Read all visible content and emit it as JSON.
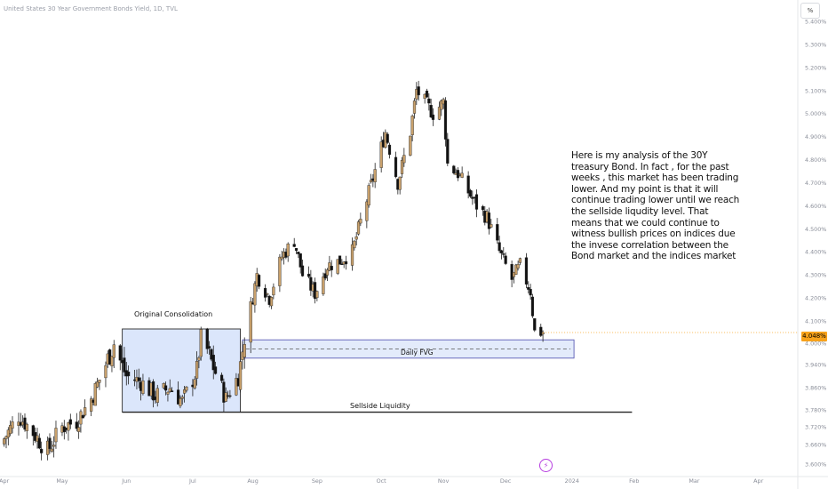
{
  "header": {
    "symbol_title": "United States 30 Year Government Bonds Yield, 1D, TVL",
    "unit_badge": "%"
  },
  "annotations": {
    "analysis_note": "Here is my analysis of the 30Y treasury Bond. In fact ,  for the past weeks  ,  this market has been trading lower. And my point is that  it will continue trading lower until we reach the sellside liqudity level. That means that we could continue to witness bullish prices on indices  due the invese correlation between the Bond market and the indices market",
    "original_consolidation": "Original Consolidation",
    "daily_fvg": "Daily FVG",
    "sellside_liquidity": "Sellside Liquidity"
  },
  "price_tag": "4.048%",
  "colors": {
    "bull": "#c8a06b",
    "bear": "#111111",
    "consolidation_fill": "#dbe6fb",
    "consolidation_stroke": "#2b2b2b",
    "fvg_fill": "#e3ebfb",
    "fvg_stroke": "#5b5bb5",
    "price_tag": "#f7a21b",
    "axis_text": "#8a8e99",
    "bolt_icon": "#b63de0"
  },
  "icons": {
    "event_marker": "lightning-bolt-icon"
  },
  "chart_data": {
    "type": "candlestick",
    "title": "United States 30 Year Government Bonds Yield, 1D, TVL",
    "y_unit": "%",
    "ylim": [
      3.57,
      5.43
    ],
    "xlim": [
      "2023-04-01",
      "2024-04-20"
    ],
    "grid": false,
    "y_ticks": [
      "5.400%",
      "5.300%",
      "5.200%",
      "5.100%",
      "5.000%",
      "4.900%",
      "4.800%",
      "4.700%",
      "4.600%",
      "4.500%",
      "4.400%",
      "4.300%",
      "4.200%",
      "4.100%",
      "4.000%",
      "3.940%",
      "3.860%",
      "3.780%",
      "3.720%",
      "3.660%",
      "3.600%"
    ],
    "x_ticks": [
      {
        "label": "Apr",
        "date": "2023-04-03"
      },
      {
        "label": "May",
        "date": "2023-05-01"
      },
      {
        "label": "Jun",
        "date": "2023-06-01"
      },
      {
        "label": "Jul",
        "date": "2023-07-03"
      },
      {
        "label": "Aug",
        "date": "2023-08-01"
      },
      {
        "label": "Sep",
        "date": "2023-09-01"
      },
      {
        "label": "Oct",
        "date": "2023-10-02"
      },
      {
        "label": "Nov",
        "date": "2023-11-01"
      },
      {
        "label": "Dec",
        "date": "2023-12-01"
      },
      {
        "label": "2024",
        "date": "2024-01-02"
      },
      {
        "label": "Feb",
        "date": "2024-02-01"
      },
      {
        "label": "Mar",
        "date": "2024-03-01"
      },
      {
        "label": "Apr",
        "date": "2024-04-01"
      }
    ],
    "last_price": 4.048,
    "close_path": [
      {
        "date": "2023-04-03",
        "close": 3.68
      },
      {
        "date": "2023-04-10",
        "close": 3.76
      },
      {
        "date": "2023-04-17",
        "close": 3.7
      },
      {
        "date": "2023-04-24",
        "close": 3.64
      },
      {
        "date": "2023-05-01",
        "close": 3.72
      },
      {
        "date": "2023-05-08",
        "close": 3.74
      },
      {
        "date": "2023-05-15",
        "close": 3.82
      },
      {
        "date": "2023-05-22",
        "close": 3.94
      },
      {
        "date": "2023-05-26",
        "close": 4.0
      },
      {
        "date": "2023-06-01",
        "close": 3.9
      },
      {
        "date": "2023-06-08",
        "close": 3.88
      },
      {
        "date": "2023-06-15",
        "close": 3.83
      },
      {
        "date": "2023-06-22",
        "close": 3.86
      },
      {
        "date": "2023-06-28",
        "close": 3.81
      },
      {
        "date": "2023-07-05",
        "close": 3.92
      },
      {
        "date": "2023-07-07",
        "close": 4.03
      },
      {
        "date": "2023-07-13",
        "close": 3.93
      },
      {
        "date": "2023-07-19",
        "close": 3.82
      },
      {
        "date": "2023-07-25",
        "close": 3.9
      },
      {
        "date": "2023-07-28",
        "close": 4.02
      },
      {
        "date": "2023-08-03",
        "close": 4.3
      },
      {
        "date": "2023-08-09",
        "close": 4.2
      },
      {
        "date": "2023-08-15",
        "close": 4.38
      },
      {
        "date": "2023-08-21",
        "close": 4.45
      },
      {
        "date": "2023-08-25",
        "close": 4.3
      },
      {
        "date": "2023-08-31",
        "close": 4.22
      },
      {
        "date": "2023-09-06",
        "close": 4.34
      },
      {
        "date": "2023-09-12",
        "close": 4.36
      },
      {
        "date": "2023-09-18",
        "close": 4.4
      },
      {
        "date": "2023-09-22",
        "close": 4.53
      },
      {
        "date": "2023-09-28",
        "close": 4.72
      },
      {
        "date": "2023-10-04",
        "close": 4.92
      },
      {
        "date": "2023-10-10",
        "close": 4.7
      },
      {
        "date": "2023-10-16",
        "close": 4.92
      },
      {
        "date": "2023-10-19",
        "close": 5.1
      },
      {
        "date": "2023-10-23",
        "close": 5.05
      },
      {
        "date": "2023-10-27",
        "close": 5.0
      },
      {
        "date": "2023-11-01",
        "close": 5.05
      },
      {
        "date": "2023-11-03",
        "close": 4.78
      },
      {
        "date": "2023-11-08",
        "close": 4.74
      },
      {
        "date": "2023-11-13",
        "close": 4.66
      },
      {
        "date": "2023-11-17",
        "close": 4.6
      },
      {
        "date": "2023-11-22",
        "close": 4.55
      },
      {
        "date": "2023-11-28",
        "close": 4.4
      },
      {
        "date": "2023-12-04",
        "close": 4.28
      },
      {
        "date": "2023-12-08",
        "close": 4.34
      },
      {
        "date": "2023-12-13",
        "close": 4.23
      },
      {
        "date": "2023-12-15",
        "close": 4.05
      },
      {
        "date": "2023-12-19",
        "close": 4.05
      }
    ],
    "zones": [
      {
        "label": "Original Consolidation",
        "from": "2023-05-30",
        "to": "2023-07-26",
        "low": 3.772,
        "high": 4.064
      },
      {
        "label": "Daily FVG",
        "from": "2023-07-27",
        "to": "2024-01-03",
        "low": 3.958,
        "high": 4.015
      },
      {
        "label": "Sellside Liquidity",
        "type": "hline",
        "from": "2023-05-30",
        "to": "2024-01-31",
        "value": 3.772
      }
    ]
  }
}
